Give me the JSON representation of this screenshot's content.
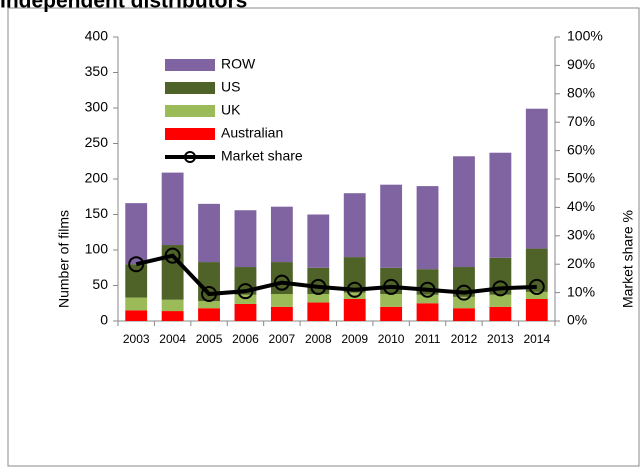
{
  "chart_data": {
    "type": "bar",
    "title": "Independent distributors",
    "y_label": "Number of films",
    "y2_label": "Market share %",
    "stacked": true,
    "categories": [
      "2003",
      "2004",
      "2005",
      "2006",
      "2007",
      "2008",
      "2009",
      "2010",
      "2011",
      "2012",
      "2013",
      "2014"
    ],
    "series": [
      {
        "name": "ROW",
        "color": "#8064a2",
        "values": [
          86,
          102,
          82,
          80,
          78,
          75,
          90,
          117,
          117,
          156,
          148,
          197
        ]
      },
      {
        "name": "US",
        "color": "#4f6228",
        "values": [
          47,
          77,
          55,
          39,
          45,
          37,
          50,
          37,
          36,
          42,
          52,
          61
        ]
      },
      {
        "name": "UK",
        "color": "#9bbb59",
        "values": [
          18,
          16,
          10,
          13,
          18,
          12,
          9,
          18,
          12,
          16,
          17,
          10
        ]
      },
      {
        "name": "Australian",
        "color": "#ff0000",
        "values": [
          15,
          14,
          18,
          24,
          20,
          26,
          31,
          20,
          25,
          18,
          20,
          31
        ]
      },
      {
        "name": "Market share",
        "color": "#000000",
        "type": "line",
        "axis": "y2",
        "values": [
          20,
          23,
          9.5,
          10.5,
          13.5,
          12,
          11,
          12,
          11,
          10,
          11.5,
          12
        ]
      }
    ],
    "ylim": [
      0,
      400
    ],
    "yticks": [
      0,
      50,
      100,
      150,
      200,
      250,
      300,
      350,
      400
    ],
    "y2lim": [
      0,
      100
    ],
    "y2ticks": [
      {
        "value": 0,
        "label": "0%"
      },
      {
        "value": 10,
        "label": "10%"
      },
      {
        "value": 20,
        "label": "20%"
      },
      {
        "value": 30,
        "label": "30%"
      },
      {
        "value": 40,
        "label": "40%"
      },
      {
        "value": 50,
        "label": "50%"
      },
      {
        "value": 60,
        "label": "60%"
      },
      {
        "value": 70,
        "label": "70%"
      },
      {
        "value": 80,
        "label": "80%"
      },
      {
        "value": 90,
        "label": "90%"
      },
      {
        "value": 100,
        "label": "100%"
      }
    ],
    "legend": "top-left"
  }
}
